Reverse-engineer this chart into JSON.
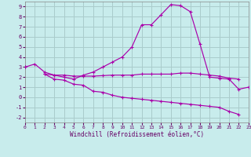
{
  "xlabel": "Windchill (Refroidissement éolien,°C)",
  "xlim": [
    0,
    23
  ],
  "ylim": [
    -2.5,
    9.5
  ],
  "xticks": [
    0,
    1,
    2,
    3,
    4,
    5,
    6,
    7,
    8,
    9,
    10,
    11,
    12,
    13,
    14,
    15,
    16,
    17,
    18,
    19,
    20,
    21,
    22,
    23
  ],
  "yticks": [
    -2,
    -1,
    0,
    1,
    2,
    3,
    4,
    5,
    6,
    7,
    8,
    9
  ],
  "bg_color": "#c8ecec",
  "line_color": "#aa00aa",
  "grid_color": "#aacccc",
  "curve1": [
    3.0,
    3.3,
    2.5,
    2.2,
    2.0,
    1.8,
    2.2,
    2.5,
    3.0,
    3.5,
    4.0,
    5.0,
    7.2,
    7.2,
    8.2,
    9.2,
    9.1,
    8.5,
    5.3,
    2.0,
    1.9,
    1.8,
    0.8,
    1.0
  ],
  "curve2": [
    3.0,
    null,
    2.3,
    2.2,
    2.2,
    2.1,
    2.1,
    2.1,
    2.15,
    2.2,
    2.2,
    2.2,
    2.3,
    2.3,
    2.3,
    2.3,
    2.4,
    2.4,
    2.3,
    2.2,
    2.1,
    1.9,
    1.8,
    null
  ],
  "curve3": [
    3.0,
    null,
    2.3,
    1.8,
    1.7,
    1.3,
    1.2,
    0.6,
    0.5,
    0.2,
    0.0,
    -0.1,
    -0.2,
    -0.3,
    -0.4,
    -0.5,
    -0.6,
    -0.7,
    -0.8,
    -0.9,
    -1.0,
    -1.4,
    -1.7,
    null
  ]
}
